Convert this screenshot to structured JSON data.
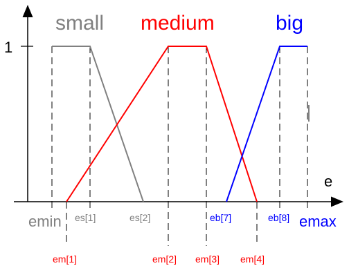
{
  "sets": {
    "small": {
      "label": "small",
      "color": "#808080"
    },
    "medium": {
      "label": "medium",
      "color": "#ff0000"
    },
    "big": {
      "label": "big",
      "color": "#0000ff"
    }
  },
  "axis": {
    "y_label": "1",
    "x_label": "e",
    "min_label": "emin",
    "max_label": "emax"
  },
  "ticks": {
    "es1": "es[1]",
    "es2": "es[2]",
    "eb7": "eb[7]",
    "eb8": "eb[8]",
    "em1": "em[1]",
    "em2": "em[2]",
    "em3": "em[3]",
    "em4": "em[4]"
  }
}
